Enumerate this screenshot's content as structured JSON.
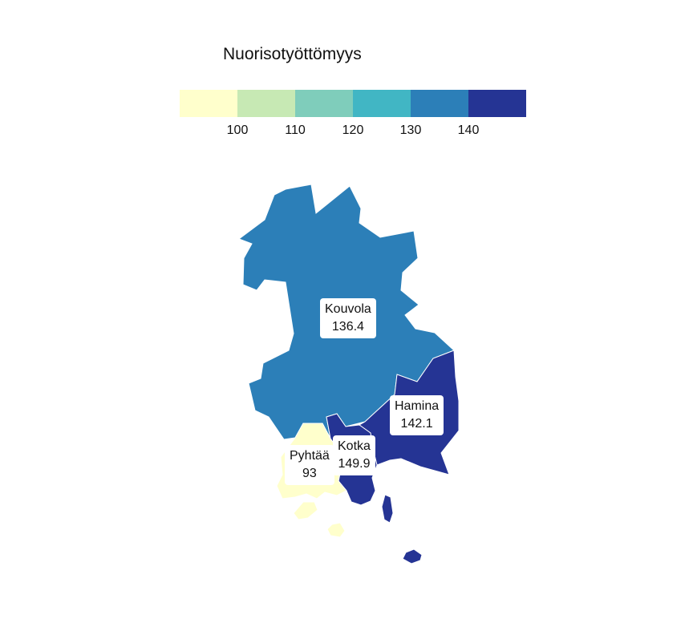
{
  "legend": {
    "title": "Nuorisotyöttömyys",
    "colors": [
      "#ffffcc",
      "#c7e9b4",
      "#7fcdbb",
      "#41b6c4",
      "#2c7fb8",
      "#253494"
    ],
    "ticks": [
      "100",
      "110",
      "120",
      "130",
      "140"
    ]
  },
  "regions": [
    {
      "name": "Kouvola",
      "value": "136.4",
      "color": "#2c7fb8"
    },
    {
      "name": "Hamina",
      "value": "142.1",
      "color": "#253494"
    },
    {
      "name": "Kotka",
      "value": "149.9",
      "color": "#253494"
    },
    {
      "name": "Pyhtää",
      "value": "93",
      "color": "#ffffcc"
    }
  ]
}
